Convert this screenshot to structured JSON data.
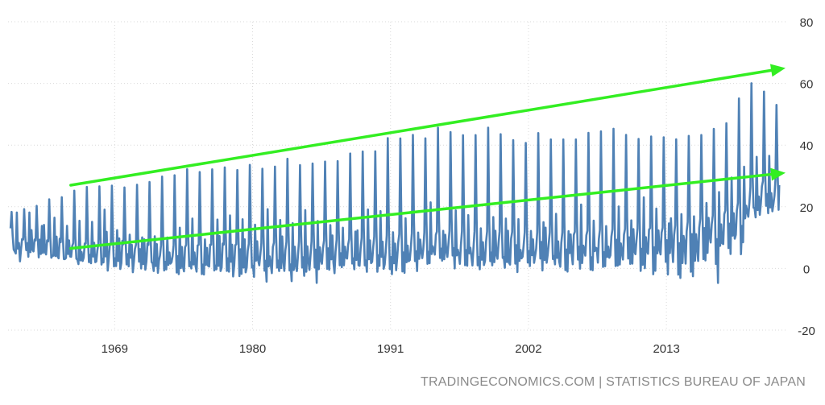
{
  "source": "TRADINGECONOMICS.COM | STATISTICS BUREAU OF JAPAN",
  "colors": {
    "series": "#4f81b5",
    "trend": "#33ee22",
    "grid": "#d9d9d9",
    "tick_text": "#333333",
    "source_text": "#8a8a8a"
  },
  "chart_data": {
    "type": "line",
    "title": "",
    "xlabel": "",
    "ylabel": "",
    "ylim": [
      -20,
      80
    ],
    "xlim": [
      1960.5,
      2022.5
    ],
    "y_ticks": [
      80,
      60,
      40,
      20,
      0,
      -20
    ],
    "x_ticks": [
      1969,
      1980,
      1991,
      2002,
      2013
    ],
    "y_axis_position": "right",
    "grid": true,
    "legend": "none",
    "series": [
      {
        "envelope": {
          "max_points": [
            [
              1960.7,
              19
            ],
            [
              1963,
              22
            ],
            [
              1966,
              26
            ],
            [
              1969,
              28
            ],
            [
              1972,
              30
            ],
            [
              1975,
              34
            ],
            [
              1978,
              33
            ],
            [
              1980,
              34
            ],
            [
              1983,
              36
            ],
            [
              1986,
              37
            ],
            [
              1988,
              38
            ],
            [
              1991,
              43
            ],
            [
              1993,
              45
            ],
            [
              1996,
              47
            ],
            [
              1999,
              46
            ],
            [
              2002,
              44
            ],
            [
              2005,
              44
            ],
            [
              2008,
              46
            ],
            [
              2011,
              44
            ],
            [
              2013,
              43
            ],
            [
              2016,
              47
            ],
            [
              2018,
              50
            ],
            [
              2019.5,
              60
            ],
            [
              2020,
              63
            ],
            [
              2021,
              59
            ],
            [
              2022,
              56
            ]
          ],
          "min_points": [
            [
              1960.7,
              4
            ],
            [
              1963,
              2
            ],
            [
              1966,
              0
            ],
            [
              1969,
              -1
            ],
            [
              1972,
              -2
            ],
            [
              1975,
              -4
            ],
            [
              1978,
              -5
            ],
            [
              1980,
              -6
            ],
            [
              1983,
              -7
            ],
            [
              1986,
              -7
            ],
            [
              1988,
              -4
            ],
            [
              1991,
              -5
            ],
            [
              1994,
              -2
            ],
            [
              1996,
              -2
            ],
            [
              1999,
              -4
            ],
            [
              2002,
              -3
            ],
            [
              2005,
              -4
            ],
            [
              2008,
              -3
            ],
            [
              2011,
              -7
            ],
            [
              2013,
              -10
            ],
            [
              2015,
              -7
            ],
            [
              2017,
              -11
            ],
            [
              2019,
              0
            ],
            [
              2020,
              14
            ],
            [
              2021,
              17
            ],
            [
              2022,
              11
            ]
          ],
          "trough_points": [
            [
              1960.7,
              8
            ],
            [
              1966,
              5
            ],
            [
              1975,
              3
            ],
            [
              1985,
              4
            ],
            [
              1995,
              6
            ],
            [
              2005,
              6
            ],
            [
              2013,
              8
            ],
            [
              2017,
              12
            ],
            [
              2019,
              16
            ],
            [
              2020,
              22
            ],
            [
              2022,
              24
            ]
          ],
          "start_value": 13,
          "end_value": 27,
          "cycles_per_year": 1
        }
      }
    ],
    "annotations": [
      {
        "type": "trend-arrow",
        "from": [
          1965.5,
          27
        ],
        "to": [
          2022.5,
          65
        ]
      },
      {
        "type": "trend-arrow",
        "from": [
          1965.5,
          6.5
        ],
        "to": [
          2022.5,
          31
        ]
      }
    ]
  }
}
